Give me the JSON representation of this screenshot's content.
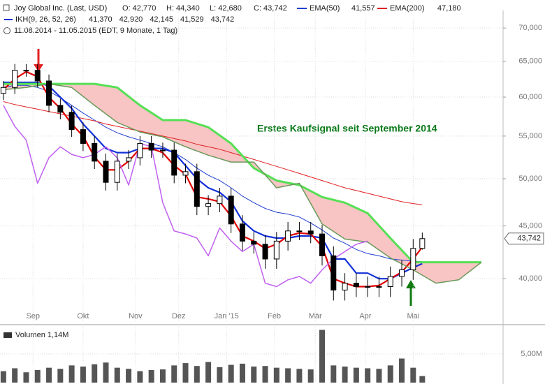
{
  "chart_data": [
    {
      "type": "candlestick",
      "title": "Joy Global Inc. (Last, USD)",
      "ohlc_labels": [
        "O: 42,770",
        "H: 44,340",
        "L: 42,680",
        "C: 43,742"
      ],
      "date_range": "11.08.2014 - 11.05.2015 (EDT, 9 Monate, 1 Tag)",
      "annotation": "Erstes Kaufsignal seit September 2014",
      "last_label": "43,742",
      "log_scale": true,
      "grid": true,
      "up_color": "#ffffff",
      "down_color": "#000000",
      "xlim": [
        -1.5,
        219.5
      ],
      "xticks": [
        {
          "value": 13,
          "label": "Sep"
        },
        {
          "value": 35,
          "label": "Okt"
        },
        {
          "value": 58,
          "label": "Nov"
        },
        {
          "value": 77,
          "label": "Dez"
        },
        {
          "value": 98,
          "label": "Jan '15"
        },
        {
          "value": 119,
          "label": "Feb"
        },
        {
          "value": 137,
          "label": "Mär"
        },
        {
          "value": 159,
          "label": "Apr"
        },
        {
          "value": 180,
          "label": "Mai"
        }
      ],
      "ylim": [
        36100,
        72800
      ],
      "yticks": [
        {
          "value": 40000,
          "label": "40,000"
        },
        {
          "value": 45000,
          "label": "45,000"
        },
        {
          "value": 50000,
          "label": "50,000"
        },
        {
          "value": 55000,
          "label": "55,000"
        },
        {
          "value": 60000,
          "label": "60,000"
        },
        {
          "value": 65000,
          "label": "65,000"
        },
        {
          "value": 70000,
          "label": "70,000"
        }
      ],
      "x": [
        0,
        5,
        10,
        15,
        20,
        25,
        30,
        35,
        40,
        45,
        50,
        55,
        60,
        65,
        70,
        75,
        80,
        85,
        90,
        95,
        100,
        105,
        110,
        115,
        120,
        125,
        130,
        135,
        140,
        145,
        150,
        155,
        160,
        165,
        170,
        175,
        180,
        184
      ],
      "open": [
        60500,
        61300,
        63700,
        63700,
        62200,
        58900,
        58000,
        55800,
        54100,
        52000,
        49600,
        52000,
        52400,
        54100,
        53300,
        53300,
        50400,
        50800,
        47000,
        47300,
        48100,
        45200,
        43500,
        43200,
        41800,
        43500,
        44500,
        44500,
        44200,
        42100,
        39000,
        39600,
        39300,
        39300,
        39300,
        40200,
        40800,
        42800
      ],
      "high": [
        62200,
        64600,
        64600,
        64600,
        63100,
        59800,
        58900,
        56700,
        55000,
        52900,
        52900,
        53300,
        55000,
        55000,
        54200,
        54200,
        51700,
        51700,
        48200,
        49000,
        49000,
        46100,
        44400,
        44100,
        44400,
        45400,
        45400,
        45400,
        45100,
        43000,
        40500,
        40500,
        40200,
        40200,
        41100,
        41700,
        43700,
        44340
      ],
      "low": [
        59600,
        60400,
        62800,
        61300,
        58000,
        57100,
        54900,
        53200,
        51100,
        48700,
        48700,
        51100,
        51500,
        52400,
        52400,
        49500,
        49500,
        46100,
        46100,
        46400,
        44300,
        42600,
        42300,
        40900,
        40900,
        42600,
        43600,
        43300,
        41200,
        38100,
        38100,
        38400,
        38400,
        38400,
        38400,
        39300,
        39900,
        42680
      ],
      "close": [
        61300,
        63700,
        63700,
        62200,
        58900,
        58000,
        55800,
        54100,
        52000,
        49600,
        52000,
        52400,
        54100,
        53300,
        53300,
        50400,
        50800,
        47000,
        47300,
        48100,
        45200,
        43500,
        43200,
        41800,
        43500,
        44500,
        44500,
        44200,
        42100,
        39000,
        39600,
        39300,
        39300,
        39300,
        40200,
        40800,
        42800,
        43742
      ],
      "series": [
        {
          "name": "EMA(50)",
          "value_label": "41,557",
          "color": "#1f3fd0",
          "values": [
            61300,
            61600,
            61600,
            61300,
            60800,
            59900,
            58900,
            57900,
            57000,
            56100,
            55400,
            54900,
            54500,
            54100,
            53700,
            53000,
            52200,
            51200,
            50400,
            49800,
            49000,
            48100,
            47400,
            46800,
            46400,
            46200,
            45900,
            45300,
            44600,
            43800,
            43300,
            42700,
            42300,
            42100,
            41800,
            41700,
            41600,
            41557
          ]
        },
        {
          "name": "EMA(200)",
          "value_label": "47,180",
          "color": "#e02020",
          "values": [
            59400,
            59000,
            58700,
            58400,
            58100,
            57800,
            57500,
            57200,
            56900,
            56500,
            56200,
            55900,
            55600,
            55300,
            55000,
            54700,
            54400,
            54000,
            53700,
            53400,
            53000,
            52600,
            52200,
            51800,
            51400,
            51000,
            50600,
            50200,
            49800,
            49400,
            49000,
            48700,
            48400,
            48100,
            47800,
            47500,
            47300,
            47180
          ]
        }
      ],
      "ikh": {
        "name": "IKH(9, 26, 52, 26)",
        "cloud_color": "#f8c4c4",
        "series": [
          {
            "value_label": "41,370",
            "color": "#1230d8",
            "values": [
              62000,
              62000,
              62000,
              62000,
              61500,
              60000,
              58500,
              56500,
              55000,
              53500,
              53000,
              53000,
              53500,
              53500,
              53500,
              53000,
              51500,
              50000,
              49000,
              48500,
              47500,
              45500,
              44500,
              44000,
              43800,
              43800,
              44000,
              44000,
              43800,
              41800,
              41800,
              40500,
              40500,
              40000,
              40000,
              40500,
              41000,
              41370
            ]
          },
          {
            "value_label": "42,920",
            "color": "#e00000",
            "values": [
              61000,
              62500,
              63500,
              62800,
              60000,
              58500,
              56500,
              55000,
              52500,
              51000,
              51000,
              52000,
              53500,
              53500,
              53000,
              51500,
              50500,
              48000,
              47800,
              47500,
              46000,
              44000,
              43500,
              42800,
              43200,
              44000,
              44300,
              44200,
              43000,
              40000,
              39600,
              39300,
              39300,
              39400,
              40000,
              40600,
              41800,
              42920
            ]
          },
          {
            "value_label": "42,145",
            "color": "#55e055",
            "x": [
              0,
              10,
              20,
              30,
              40,
              50,
              60,
              70,
              80,
              90,
              100,
              110,
              120,
              130,
              140,
              150,
              160,
              170,
              180,
              190,
              200,
              210
            ],
            "values": [
              61800,
              61800,
              61800,
              61800,
              61800,
              61300,
              58900,
              57000,
              57000,
              56100,
              54100,
              51200,
              49800,
              49300,
              48000,
              47400,
              46300,
              43800,
              41500,
              41500,
              41500,
              41500
            ]
          },
          {
            "value_label": "41,529",
            "color": "#6a9a5a",
            "x": [
              0,
              10,
              20,
              30,
              40,
              50,
              60,
              70,
              80,
              90,
              100,
              110,
              120,
              130,
              140,
              150,
              160,
              170,
              180,
              190,
              200,
              210
            ],
            "values": [
              61000,
              61300,
              61800,
              61300,
              58900,
              56700,
              55500,
              54900,
              53700,
              52700,
              51900,
              51900,
              49000,
              49500,
              45200,
              43700,
              43400,
              41900,
              40800,
              39600,
              39900,
              41500
            ]
          },
          {
            "value_label": "43,742",
            "color": "#c060f0",
            "values": [
              58900,
              56200,
              54500,
              49500,
              52400,
              53700,
              52800,
              52400,
              52800,
              53700,
              52400,
              49300,
              54100,
              53700,
              47400,
              44500,
              44200,
              43800,
              42100,
              44800,
              43500,
              42500,
              43200,
              39600,
              39300,
              39900,
              40200,
              39600,
              40800,
              41800,
              42500,
              43200,
              43500,
              null,
              null,
              null,
              null,
              null
            ]
          }
        ]
      }
    },
    {
      "type": "bar",
      "title": "Volumen 1,14M",
      "color": "#555555",
      "xlim": [
        -1.5,
        219.5
      ],
      "x": [
        0,
        5,
        10,
        15,
        20,
        25,
        30,
        35,
        40,
        45,
        50,
        55,
        60,
        65,
        70,
        75,
        80,
        85,
        90,
        95,
        100,
        105,
        110,
        115,
        120,
        125,
        130,
        135,
        140,
        145,
        150,
        155,
        160,
        165,
        170,
        175,
        180,
        184
      ],
      "values": [
        2000000,
        2500000,
        1800000,
        2200000,
        2600000,
        2400000,
        3000000,
        2800000,
        3200000,
        3500000,
        2600000,
        2400000,
        2000000,
        2200000,
        2300000,
        3000000,
        3400000,
        2900000,
        3600000,
        2700000,
        3100000,
        3300000,
        2800000,
        2900000,
        2600000,
        2500000,
        2400000,
        2300000,
        9200000,
        3000000,
        2800000,
        2600000,
        2500000,
        2400000,
        3000000,
        4200000,
        2600000,
        1140000
      ],
      "ylim": [
        0,
        9500000
      ],
      "yticks": [
        {
          "value": 5000000,
          "label": "5,00M"
        }
      ]
    }
  ]
}
